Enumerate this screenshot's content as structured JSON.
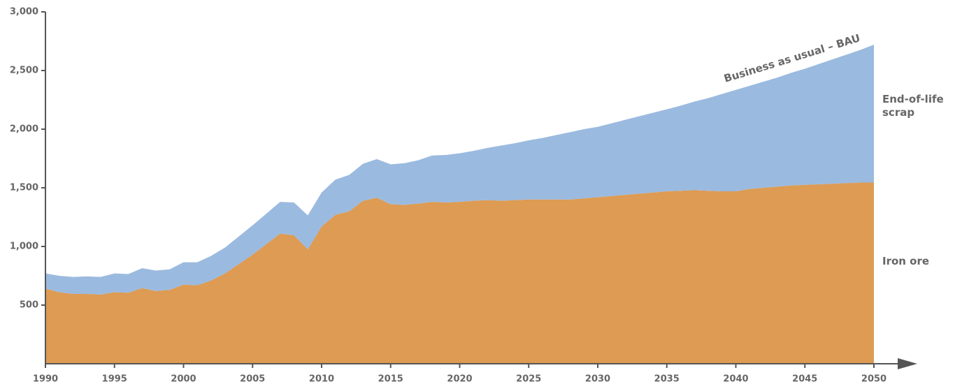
{
  "chart_data": {
    "type": "stacked_area",
    "annotation": "Business as usual – BAU",
    "x": [
      1990,
      1991,
      1992,
      1993,
      1994,
      1995,
      1996,
      1997,
      1998,
      1999,
      2000,
      2001,
      2002,
      2003,
      2004,
      2005,
      2006,
      2007,
      2008,
      2009,
      2010,
      2011,
      2012,
      2013,
      2014,
      2015,
      2016,
      2017,
      2018,
      2019,
      2020,
      2021,
      2022,
      2023,
      2024,
      2025,
      2026,
      2027,
      2028,
      2029,
      2030,
      2031,
      2032,
      2033,
      2034,
      2035,
      2036,
      2037,
      2038,
      2039,
      2040,
      2041,
      2042,
      2043,
      2044,
      2045,
      2046,
      2047,
      2048,
      2049,
      2050
    ],
    "series": [
      {
        "name": "Iron ore",
        "color": "#dd9b53",
        "values": [
          640,
          610,
          595,
          595,
          590,
          610,
          605,
          645,
          620,
          630,
          675,
          670,
          710,
          770,
          850,
          930,
          1020,
          1110,
          1095,
          975,
          1170,
          1270,
          1300,
          1390,
          1415,
          1360,
          1355,
          1365,
          1380,
          1375,
          1380,
          1390,
          1395,
          1390,
          1395,
          1400,
          1400,
          1400,
          1400,
          1410,
          1420,
          1430,
          1440,
          1450,
          1460,
          1470,
          1475,
          1480,
          1475,
          1470,
          1470,
          1490,
          1500,
          1510,
          1520,
          1525,
          1530,
          1535,
          1540,
          1545,
          1545
        ]
      },
      {
        "name": "End-of-life scrap",
        "color": "#9bbadf",
        "values": [
          130,
          140,
          145,
          150,
          150,
          160,
          160,
          170,
          175,
          175,
          190,
          195,
          210,
          220,
          235,
          250,
          260,
          270,
          280,
          290,
          290,
          300,
          310,
          315,
          330,
          340,
          355,
          370,
          395,
          405,
          415,
          425,
          445,
          470,
          485,
          505,
          525,
          550,
          575,
          590,
          600,
          620,
          640,
          660,
          680,
          700,
          725,
          755,
          790,
          830,
          865,
          880,
          905,
          930,
          960,
          990,
          1025,
          1060,
          1095,
          1130,
          1175
        ]
      }
    ],
    "xlim": [
      1990,
      2050
    ],
    "xticks": [
      1990,
      1995,
      2000,
      2005,
      2010,
      2015,
      2020,
      2025,
      2030,
      2035,
      2040,
      2045,
      2050
    ],
    "ylim": [
      0,
      3000
    ],
    "yticks": [
      500,
      {
        "value": 1000,
        "label": "1,000"
      },
      {
        "value": 1500,
        "label": "1,500"
      },
      {
        "value": 2000,
        "label": "2,000"
      },
      {
        "value": 2500,
        "label": "2,500"
      },
      {
        "value": 3000,
        "label": "3,000"
      }
    ]
  }
}
